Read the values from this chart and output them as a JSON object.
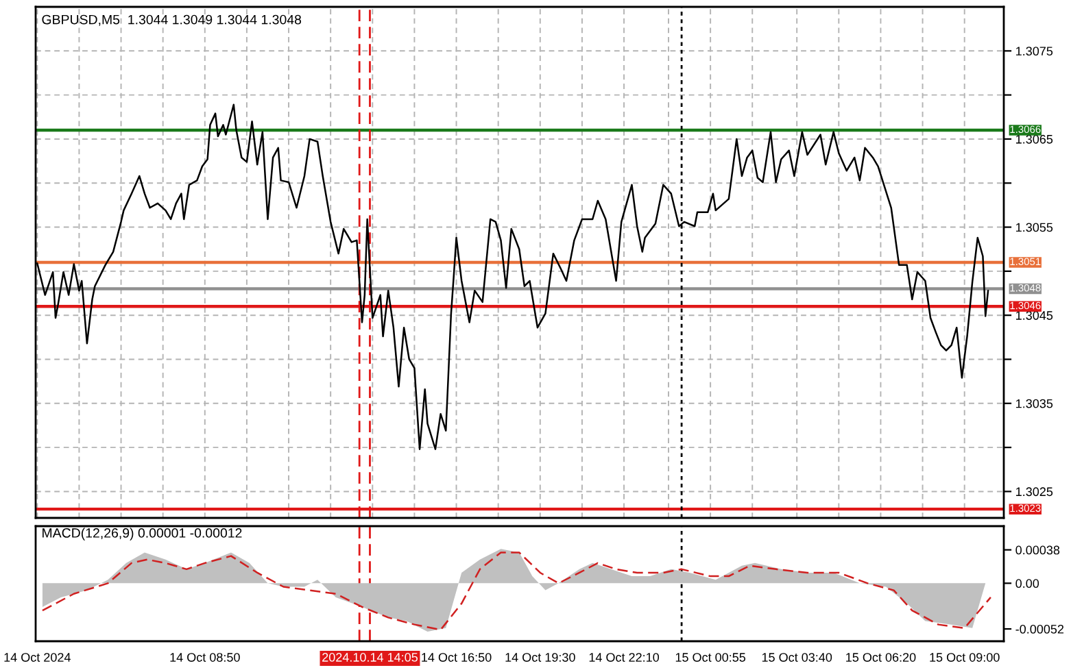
{
  "chart_data": [
    {
      "type": "line",
      "title": "GBPUSD,M5  1.3044 1.3049 1.3044 1.3048",
      "xlim": [
        "2024-10-14T03:27",
        "2024-10-15T10:15"
      ],
      "ylim": [
        1.3022,
        1.308
      ],
      "xticks": [
        {
          "value": "2024-10-14T03:30",
          "label": null
        },
        {
          "value": "2024-10-14T04:50",
          "label": null
        },
        {
          "value": "2024-10-14T06:10",
          "label": null
        },
        {
          "value": "2024-10-14T07:30",
          "label": null
        },
        {
          "value": "2024-10-14T08:50",
          "label": null
        },
        {
          "value": "2024-10-14T10:10",
          "label": null
        },
        {
          "value": "2024-10-14T11:30",
          "label": null
        },
        {
          "value": "2024-10-14T12:50",
          "label": null
        },
        {
          "value": "2024-10-14T14:10",
          "label": null
        },
        {
          "value": "2024-10-14T15:30",
          "label": null
        },
        {
          "value": "2024-10-14T16:50",
          "label": null
        },
        {
          "value": "2024-10-14T18:10",
          "label": null
        },
        {
          "value": "2024-10-14T19:30",
          "label": null
        },
        {
          "value": "2024-10-14T20:50",
          "label": null
        },
        {
          "value": "2024-10-14T22:10",
          "label": null
        },
        {
          "value": "2024-10-14T23:35",
          "label": null
        },
        {
          "value": "2024-10-15T00:55",
          "label": null
        },
        {
          "value": "2024-10-15T02:15",
          "label": null
        },
        {
          "value": "2024-10-15T03:40",
          "label": null
        },
        {
          "value": "2024-10-15T05:00",
          "label": null
        },
        {
          "value": "2024-10-15T06:20",
          "label": null
        },
        {
          "value": "2024-10-15T07:40",
          "label": null
        },
        {
          "value": "2024-10-15T09:00",
          "label": null
        }
      ],
      "yticks": [
        1.3025,
        {
          "value": 1.303,
          "label": null
        },
        1.3035,
        {
          "value": 1.304,
          "label": null
        },
        1.3045,
        {
          "value": 1.305,
          "label": null
        },
        1.3055,
        {
          "value": 1.306,
          "label": null
        },
        1.3065,
        {
          "value": 1.307,
          "label": null
        },
        1.3075
      ],
      "tick_labels": "y",
      "grid": true,
      "legend": false,
      "ref_lines": [
        {
          "axis": "y",
          "value": 1.3066,
          "label": "1.3066",
          "color": "#1a7a1a"
        },
        {
          "axis": "y",
          "value": 1.3051,
          "label": "1.3051",
          "color": "#e8703a"
        },
        {
          "axis": "y",
          "value": 1.3048,
          "label": "1.3048",
          "color": "#909090"
        },
        {
          "axis": "y",
          "value": 1.3046,
          "label": "1.3046",
          "color": "#e01818"
        },
        {
          "axis": "y",
          "value": 1.3023,
          "label": "1.3023",
          "color": "#e01818"
        },
        {
          "axis": "x",
          "value": "2024-10-14T13:45",
          "color": "#e01818",
          "line_style": "dashed"
        },
        {
          "axis": "x",
          "value": "2024-10-14T14:05",
          "color": "#e01818",
          "line_style": "dashed"
        },
        {
          "axis": "x",
          "value": "2024-10-15T00:00",
          "color": "#000000",
          "line_style": "dotted"
        }
      ],
      "series": [
        {
          "color": "#000000",
          "x": [
            "2024-10-14T03:30",
            "2024-10-14T03:45",
            "2024-10-14T04:00",
            "2024-10-14T04:05",
            "2024-10-14T04:10",
            "2024-10-14T04:20",
            "2024-10-14T04:30",
            "2024-10-14T04:40",
            "2024-10-14T04:50",
            "2024-10-14T04:55",
            "2024-10-14T05:05",
            "2024-10-14T05:15",
            "2024-10-14T05:20",
            "2024-10-14T05:40",
            "2024-10-14T05:55",
            "2024-10-14T06:10",
            "2024-10-14T06:15",
            "2024-10-14T06:30",
            "2024-10-14T06:45",
            "2024-10-14T06:55",
            "2024-10-14T07:05",
            "2024-10-14T07:20",
            "2024-10-14T07:35",
            "2024-10-14T07:45",
            "2024-10-14T07:55",
            "2024-10-14T08:05",
            "2024-10-14T08:10",
            "2024-10-14T08:20",
            "2024-10-14T08:35",
            "2024-10-14T08:45",
            "2024-10-14T08:55",
            "2024-10-14T09:00",
            "2024-10-14T09:10",
            "2024-10-14T09:15",
            "2024-10-14T09:25",
            "2024-10-14T09:30",
            "2024-10-14T09:45",
            "2024-10-14T09:50",
            "2024-10-14T10:00",
            "2024-10-14T10:10",
            "2024-10-14T10:20",
            "2024-10-14T10:30",
            "2024-10-14T10:40",
            "2024-10-14T10:50",
            "2024-10-14T11:00",
            "2024-10-14T11:10",
            "2024-10-14T11:15",
            "2024-10-14T11:30",
            "2024-10-14T11:45",
            "2024-10-14T12:00",
            "2024-10-14T12:10",
            "2024-10-14T12:25",
            "2024-10-14T12:35",
            "2024-10-14T12:50",
            "2024-10-14T13:05",
            "2024-10-14T13:15",
            "2024-10-14T13:30",
            "2024-10-14T13:40",
            "2024-10-14T13:50",
            "2024-10-14T13:55",
            "2024-10-14T14:00",
            "2024-10-14T14:10",
            "2024-10-14T14:25",
            "2024-10-14T14:30",
            "2024-10-14T14:40",
            "2024-10-14T14:50",
            "2024-10-14T15:00",
            "2024-10-14T15:10",
            "2024-10-14T15:20",
            "2024-10-14T15:30",
            "2024-10-14T15:40",
            "2024-10-14T15:50",
            "2024-10-14T15:55",
            "2024-10-14T16:10",
            "2024-10-14T16:20",
            "2024-10-14T16:30",
            "2024-10-14T16:40",
            "2024-10-14T16:45",
            "2024-10-14T16:50",
            "2024-10-14T17:00",
            "2024-10-14T17:15",
            "2024-10-14T17:25",
            "2024-10-14T17:40",
            "2024-10-14T17:55",
            "2024-10-14T18:05",
            "2024-10-14T18:15",
            "2024-10-14T18:25",
            "2024-10-14T18:35",
            "2024-10-14T18:50",
            "2024-10-14T19:00",
            "2024-10-14T19:10",
            "2024-10-14T19:25",
            "2024-10-14T19:40",
            "2024-10-14T19:55",
            "2024-10-14T20:10",
            "2024-10-14T20:20",
            "2024-10-14T20:35",
            "2024-10-14T20:50",
            "2024-10-14T21:10",
            "2024-10-14T21:20",
            "2024-10-14T21:35",
            "2024-10-14T21:55",
            "2024-10-14T22:05",
            "2024-10-14T22:25",
            "2024-10-14T22:35",
            "2024-10-14T22:45",
            "2024-10-14T22:50",
            "2024-10-14T23:10",
            "2024-10-14T23:25",
            "2024-10-14T23:40",
            "2024-10-14T23:55",
            "2024-10-15T00:05",
            "2024-10-15T00:25",
            "2024-10-15T00:30",
            "2024-10-15T00:50",
            "2024-10-15T01:00",
            "2024-10-15T01:05",
            "2024-10-15T01:30",
            "2024-10-15T01:45",
            "2024-10-15T01:55",
            "2024-10-15T02:05",
            "2024-10-15T02:15",
            "2024-10-15T02:25",
            "2024-10-15T02:35",
            "2024-10-15T02:50",
            "2024-10-15T03:00",
            "2024-10-15T03:10",
            "2024-10-15T03:25",
            "2024-10-15T03:35",
            "2024-10-15T03:50",
            "2024-10-15T04:00",
            "2024-10-15T04:25",
            "2024-10-15T04:35",
            "2024-10-15T04:50",
            "2024-10-15T05:00",
            "2024-10-15T05:15",
            "2024-10-15T05:30",
            "2024-10-15T05:40",
            "2024-10-15T05:50",
            "2024-10-15T06:05",
            "2024-10-15T06:15",
            "2024-10-15T06:40",
            "2024-10-15T06:55",
            "2024-10-15T07:10",
            "2024-10-15T07:20",
            "2024-10-15T07:30",
            "2024-10-15T07:45",
            "2024-10-15T07:55",
            "2024-10-15T08:05",
            "2024-10-15T08:15",
            "2024-10-15T08:25",
            "2024-10-15T08:35",
            "2024-10-15T08:45",
            "2024-10-15T08:55",
            "2024-10-15T09:05",
            "2024-10-15T09:15",
            "2024-10-15T09:25",
            "2024-10-15T09:35",
            "2024-10-15T09:40",
            "2024-10-15T09:45"
          ],
          "values": [
            1.30509,
            1.30473,
            1.30499,
            1.30447,
            1.30463,
            1.30499,
            1.30473,
            1.30508,
            1.30478,
            1.30489,
            1.30418,
            1.30468,
            1.30483,
            1.30507,
            1.30522,
            1.30556,
            1.30569,
            1.30588,
            1.30608,
            1.30588,
            1.30572,
            1.30577,
            1.30569,
            1.30559,
            1.30577,
            1.30588,
            1.30559,
            1.30598,
            1.30603,
            1.30619,
            1.30627,
            1.30666,
            1.30679,
            1.30653,
            1.30666,
            1.30655,
            1.30689,
            1.3066,
            1.30629,
            1.30624,
            1.3067,
            1.30621,
            1.30658,
            1.30559,
            1.30629,
            1.3064,
            1.30603,
            1.30601,
            1.30572,
            1.30608,
            1.3065,
            1.30647,
            1.30608,
            1.30556,
            1.3052,
            1.30548,
            1.30533,
            1.30535,
            1.30442,
            1.30473,
            1.30559,
            1.30447,
            1.30473,
            1.30426,
            1.30478,
            1.30436,
            1.30369,
            1.30436,
            1.304,
            1.3039,
            1.30298,
            1.30366,
            1.30327,
            1.30298,
            1.30338,
            1.30319,
            1.30452,
            1.30494,
            1.30538,
            1.30489,
            1.30442,
            1.30478,
            1.30465,
            1.30559,
            1.30556,
            1.30535,
            1.30481,
            1.30548,
            1.30525,
            1.30483,
            1.30489,
            1.30436,
            1.30452,
            1.3052,
            1.30502,
            1.30489,
            1.30535,
            1.30559,
            1.30559,
            1.3058,
            1.30559,
            1.30489,
            1.30556,
            1.30598,
            1.30551,
            1.30522,
            1.30538,
            1.30554,
            1.30598,
            1.30588,
            1.30551,
            1.30556,
            1.30551,
            1.30567,
            1.30567,
            1.30588,
            1.30569,
            1.30582,
            1.3065,
            1.30608,
            1.30629,
            1.30637,
            1.30606,
            1.30601,
            1.30658,
            1.30601,
            1.30627,
            1.30637,
            1.30608,
            1.30658,
            1.30632,
            1.30655,
            1.30621,
            1.30658,
            1.30634,
            1.30614,
            1.30629,
            1.30603,
            1.3064,
            1.30629,
            1.30619,
            1.30572,
            1.30507,
            1.30507,
            1.30468,
            1.30499,
            1.30489,
            1.30447,
            1.30431,
            1.30416,
            1.3041,
            1.30416,
            1.30436,
            1.30379,
            1.30426,
            1.30488,
            1.30538,
            1.30517,
            1.30449,
            1.30478
          ]
        }
      ]
    },
    {
      "type": "area",
      "title": "MACD(12,26,9) 0.00001 -0.00012",
      "xlim": [
        "2024-10-14T03:27",
        "2024-10-15T10:15"
      ],
      "ylim": [
        -0.00066,
        0.00065
      ],
      "xticks": [
        {
          "value": "2024-10-14T03:30",
          "label": "14 Oct 2024"
        },
        {
          "value": "2024-10-14T08:50",
          "label": "14 Oct 08:50"
        },
        {
          "value": "2024-10-14T14:10",
          "label": null
        },
        {
          "value": "2024-10-14T16:50",
          "label": "14 Oct 16:50"
        },
        {
          "value": "2024-10-14T19:30",
          "label": "14 Oct 19:30"
        },
        {
          "value": "2024-10-14T22:10",
          "label": "14 Oct 22:10"
        },
        {
          "value": "2024-10-15T00:55",
          "label": "15 Oct 00:55"
        },
        {
          "value": "2024-10-15T03:40",
          "label": "15 Oct 03:40"
        },
        {
          "value": "2024-10-15T06:20",
          "label": "15 Oct 06:20"
        },
        {
          "value": "2024-10-15T09:00",
          "label": "15 Oct 09:00"
        }
      ],
      "yticks": [
        0.00038,
        {
          "value": 0,
          "label": "0.00"
        },
        -0.00052
      ],
      "grid": false,
      "legend": false,
      "ref_lines": [
        {
          "axis": "x",
          "value": "2024-10-14T13:45",
          "color": "#e01818",
          "line_style": "dashed"
        },
        {
          "axis": "x",
          "value": "2024-10-14T14:05",
          "label": "2024.10.14 14:05",
          "color": "#e01818",
          "line_style": "dashed"
        },
        {
          "axis": "x",
          "value": "2024-10-15T00:00",
          "color": "#000000",
          "line_style": "dotted"
        }
      ],
      "series": [
        {
          "type": "area",
          "color": "#c0c0c0",
          "x": [
            "2024-10-14T03:40",
            "2024-10-14T04:15",
            "2024-10-14T05:05",
            "2024-10-14T05:45",
            "2024-10-14T06:20",
            "2024-10-14T06:55",
            "2024-10-14T07:35",
            "2024-10-14T08:15",
            "2024-10-14T08:50",
            "2024-10-14T09:40",
            "2024-10-14T10:15",
            "2024-10-14T10:50",
            "2024-10-14T11:20",
            "2024-10-14T12:00",
            "2024-10-14T12:25",
            "2024-10-14T13:00",
            "2024-10-14T13:50",
            "2024-10-14T14:40",
            "2024-10-14T15:15",
            "2024-10-14T15:55",
            "2024-10-14T16:30",
            "2024-10-14T17:00",
            "2024-10-14T17:35",
            "2024-10-14T18:15",
            "2024-10-14T18:50",
            "2024-10-14T19:15",
            "2024-10-14T19:40",
            "2024-10-14T20:05",
            "2024-10-14T20:45",
            "2024-10-14T21:10",
            "2024-10-14T21:45",
            "2024-10-14T22:25",
            "2024-10-14T23:00",
            "2024-10-14T23:40",
            "2024-10-15T00:15",
            "2024-10-15T01:05",
            "2024-10-15T01:55",
            "2024-10-15T02:20",
            "2024-10-15T03:10",
            "2024-10-15T04:00",
            "2024-10-15T04:50",
            "2024-10-15T05:40",
            "2024-10-15T06:30",
            "2024-10-15T07:10",
            "2024-10-15T07:45",
            "2024-10-15T08:35",
            "2024-10-15T09:15",
            "2024-10-15T09:40"
          ],
          "values": [
            -0.00027,
            -0.00016,
            -8e-05,
            4e-05,
            0.00023,
            0.00035,
            0.00027,
            0.00016,
            0.00023,
            0.00035,
            0.00023,
            0,
            -4e-05,
            -4e-05,
            4e-05,
            -0.00016,
            -0.00027,
            -0.00039,
            -0.00043,
            -0.00055,
            -0.00051,
            0.00012,
            0.00027,
            0.00039,
            0.00035,
            8e-05,
            -8e-05,
            0,
            0.00016,
            0.00023,
            0.00016,
            8e-05,
            8e-05,
            0.00016,
            0.00012,
            4e-05,
            0.0002,
            0.00023,
            0.00016,
            0.00012,
            0.00012,
            0,
            -4e-05,
            -0.00023,
            -0.00043,
            -0.00047,
            -0.00051,
            0
          ]
        },
        {
          "type": "line",
          "color": "#d02020",
          "line_style": "dashed",
          "x": [
            "2024-10-14T03:40",
            "2024-10-14T04:40",
            "2024-10-14T05:45",
            "2024-10-14T06:30",
            "2024-10-14T07:00",
            "2024-10-14T07:35",
            "2024-10-14T08:15",
            "2024-10-14T08:50",
            "2024-10-14T09:40",
            "2024-10-14T10:30",
            "2024-10-14T11:20",
            "2024-10-14T12:10",
            "2024-10-14T13:00",
            "2024-10-14T13:50",
            "2024-10-14T14:40",
            "2024-10-14T15:30",
            "2024-10-14T16:20",
            "2024-10-14T17:00",
            "2024-10-14T17:35",
            "2024-10-14T18:15",
            "2024-10-14T18:50",
            "2024-10-14T19:30",
            "2024-10-14T20:05",
            "2024-10-14T20:45",
            "2024-10-14T21:20",
            "2024-10-14T21:55",
            "2024-10-14T22:35",
            "2024-10-14T23:25",
            "2024-10-15T00:00",
            "2024-10-15T00:55",
            "2024-10-15T01:30",
            "2024-10-15T02:10",
            "2024-10-15T03:00",
            "2024-10-15T04:00",
            "2024-10-15T05:00",
            "2024-10-15T05:55",
            "2024-10-15T06:45",
            "2024-10-15T07:20",
            "2024-10-15T08:10",
            "2024-10-15T09:00",
            "2024-10-15T09:50"
          ],
          "values": [
            -0.00031,
            -0.00012,
            0,
            0.00023,
            0.00027,
            0.00023,
            0.00016,
            0.00023,
            0.00031,
            0.00012,
            -4e-05,
            -8e-05,
            -0.00012,
            -0.00027,
            -0.00039,
            -0.00047,
            -0.00053,
            -0.00023,
            0.00016,
            0.00035,
            0.00035,
            0.00012,
            0,
            0.00012,
            0.00023,
            0.00016,
            0.00012,
            0.00012,
            0.00016,
            8e-05,
            8e-05,
            0.0002,
            0.00016,
            0.00012,
            0.00012,
            0,
            -8e-05,
            -0.00031,
            -0.00047,
            -0.00051,
            -0.00016
          ]
        }
      ]
    }
  ]
}
